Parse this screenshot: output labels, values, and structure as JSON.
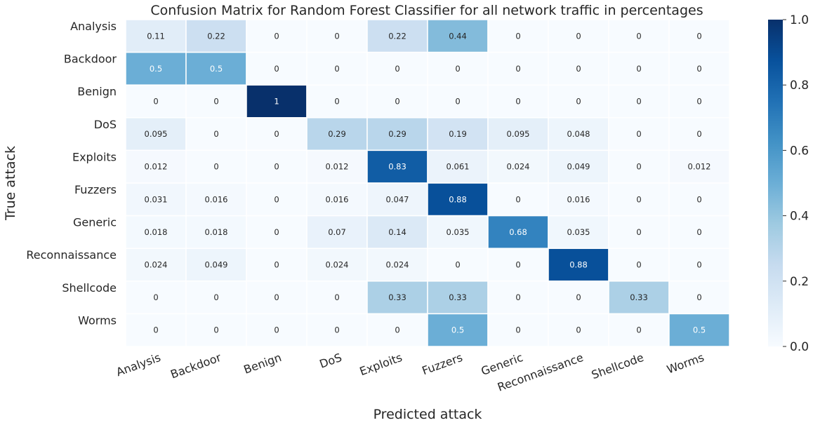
{
  "chart_data": {
    "type": "heatmap",
    "title": "Confusion Matrix for Random Forest Classifier for all network traffic in percentages",
    "xlabel": "Predicted attack",
    "ylabel": "True attack",
    "row_labels": [
      "Analysis",
      "Backdoor",
      "Benign",
      "DoS",
      "Exploits",
      "Fuzzers",
      "Generic",
      "Reconnaissance",
      "Shellcode",
      "Worms"
    ],
    "col_labels": [
      "Analysis",
      "Backdoor",
      "Benign",
      "DoS",
      "Exploits",
      "Fuzzers",
      "Generic",
      "Reconnaissance",
      "Shellcode",
      "Worms"
    ],
    "values": [
      [
        0.11,
        0.22,
        0,
        0,
        0.22,
        0.44,
        0,
        0,
        0,
        0
      ],
      [
        0.5,
        0.5,
        0,
        0,
        0,
        0,
        0,
        0,
        0,
        0
      ],
      [
        0,
        0,
        1,
        0,
        0,
        0,
        0,
        0,
        0,
        0
      ],
      [
        0.095,
        0,
        0,
        0.29,
        0.29,
        0.19,
        0.095,
        0.048,
        0,
        0
      ],
      [
        0.012,
        0,
        0,
        0.012,
        0.83,
        0.061,
        0.024,
        0.049,
        0,
        0.012
      ],
      [
        0.031,
        0.016,
        0,
        0.016,
        0.047,
        0.88,
        0,
        0.016,
        0,
        0
      ],
      [
        0.018,
        0.018,
        0,
        0.07,
        0.14,
        0.035,
        0.68,
        0.035,
        0,
        0
      ],
      [
        0.024,
        0.049,
        0,
        0.024,
        0.024,
        0,
        0,
        0.88,
        0,
        0
      ],
      [
        0,
        0,
        0,
        0,
        0.33,
        0.33,
        0,
        0,
        0.33,
        0
      ],
      [
        0,
        0,
        0,
        0,
        0,
        0.5,
        0,
        0,
        0,
        0.5
      ]
    ],
    "value_range": [
      0.0,
      1.0
    ],
    "colormap": "Blues",
    "colorbar_ticks": [
      "0.0",
      "0.2",
      "0.4",
      "0.6",
      "0.8",
      "1.0"
    ],
    "grid": true
  }
}
